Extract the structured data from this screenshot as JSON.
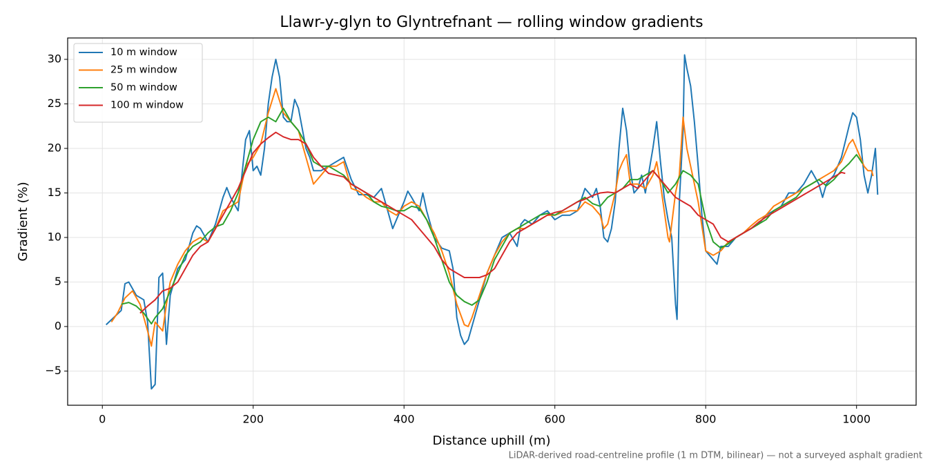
{
  "chart_data": {
    "type": "line",
    "title": "Llawr-y-glyn to Glyntrefnant — rolling window gradients",
    "x_label": "Distance uphill (m)",
    "y_label": "Gradient (%)",
    "footnote": "LiDAR-derived road-centreline profile (1 m DTM, bilinear) — not a surveyed asphalt gradient",
    "xlim": [
      -46,
      1079
    ],
    "ylim": [
      -8.84,
      32.4
    ],
    "xticks": [
      0,
      200,
      400,
      600,
      800,
      1000
    ],
    "yticks": [
      {
        "value": -5,
        "label": "−5"
      },
      0,
      5,
      10,
      15,
      20,
      25,
      30
    ],
    "grid": true,
    "legend": "upper-left",
    "series": [
      {
        "name": "10 m window",
        "color": "#1f77b4",
        "x": [
          5,
          15,
          25,
          30,
          35,
          45,
          55,
          60,
          65,
          70,
          75,
          80,
          85,
          90,
          95,
          100,
          110,
          120,
          125,
          130,
          140,
          150,
          160,
          165,
          170,
          180,
          185,
          190,
          195,
          200,
          205,
          210,
          215,
          220,
          225,
          230,
          235,
          240,
          245,
          250,
          255,
          260,
          270,
          275,
          280,
          290,
          300,
          310,
          320,
          330,
          340,
          350,
          360,
          370,
          380,
          385,
          390,
          400,
          405,
          410,
          420,
          425,
          430,
          440,
          450,
          460,
          465,
          470,
          475,
          480,
          485,
          490,
          500,
          510,
          520,
          530,
          540,
          550,
          555,
          560,
          570,
          580,
          590,
          600,
          610,
          620,
          630,
          640,
          650,
          655,
          660,
          665,
          670,
          675,
          680,
          685,
          690,
          695,
          700,
          705,
          710,
          715,
          720,
          730,
          735,
          740,
          745,
          750,
          755,
          760,
          762,
          765,
          770,
          772,
          775,
          780,
          785,
          790,
          795,
          800,
          810,
          815,
          820,
          830,
          840,
          850,
          860,
          870,
          880,
          890,
          900,
          910,
          920,
          930,
          940,
          950,
          955,
          960,
          970,
          980,
          990,
          995,
          1000,
          1005,
          1010,
          1015,
          1020,
          1025,
          1028
        ],
        "values": [
          0.2,
          1.0,
          1.8,
          4.8,
          5.0,
          3.5,
          3.0,
          0.5,
          -7.0,
          -6.5,
          5.5,
          6.0,
          -2.0,
          3.5,
          5,
          6.5,
          7.5,
          10.5,
          11.3,
          11.0,
          9.5,
          11.5,
          14.5,
          15.6,
          14.5,
          13,
          17,
          21,
          22,
          17.5,
          18,
          17,
          20,
          25,
          28,
          30,
          28,
          23.5,
          23,
          23,
          25.5,
          24.5,
          20,
          19,
          17.5,
          17.5,
          18,
          18.5,
          19,
          16.5,
          14.8,
          14.8,
          14.5,
          15.5,
          12.5,
          11,
          12,
          14,
          15.2,
          14.5,
          13,
          15,
          13,
          10,
          8.8,
          8.5,
          6.5,
          1,
          -1,
          -2,
          -1.5,
          0,
          3,
          6,
          8,
          10,
          10.5,
          9,
          11.5,
          12,
          11.5,
          12.5,
          13,
          12,
          12.5,
          12.5,
          13,
          15.5,
          14.5,
          15.5,
          13.5,
          10,
          9.5,
          11,
          14,
          20,
          24.5,
          22,
          17.5,
          15,
          15.5,
          17,
          15,
          20,
          23,
          18.5,
          14.5,
          12,
          10,
          2.5,
          0.8,
          14,
          22,
          30.5,
          29,
          27,
          23,
          18,
          12.5,
          8.5,
          7.5,
          7,
          9,
          9,
          10,
          10.5,
          11,
          11.5,
          12.5,
          13,
          13.5,
          15,
          15,
          16,
          17.5,
          16,
          14.5,
          16,
          17,
          19,
          22.5,
          24,
          23.5,
          21,
          17,
          15,
          17,
          20,
          14.8
        ]
      },
      {
        "name": "25 m window",
        "color": "#ff7f0e",
        "x": [
          12,
          20,
          30,
          40,
          50,
          60,
          65,
          70,
          75,
          80,
          85,
          90,
          100,
          110,
          120,
          130,
          140,
          150,
          160,
          170,
          180,
          190,
          200,
          210,
          220,
          230,
          240,
          250,
          260,
          270,
          280,
          290,
          300,
          310,
          320,
          330,
          340,
          350,
          360,
          370,
          380,
          390,
          400,
          410,
          420,
          430,
          440,
          450,
          460,
          470,
          480,
          485,
          490,
          500,
          510,
          520,
          530,
          540,
          550,
          560,
          570,
          580,
          590,
          600,
          610,
          620,
          630,
          640,
          650,
          660,
          665,
          670,
          680,
          685,
          690,
          695,
          700,
          710,
          720,
          730,
          735,
          740,
          745,
          750,
          752,
          760,
          765,
          770,
          775,
          780,
          790,
          800,
          810,
          820,
          830,
          840,
          850,
          860,
          870,
          880,
          890,
          900,
          910,
          920,
          930,
          940,
          950,
          960,
          970,
          980,
          990,
          995,
          1000,
          1010,
          1015,
          1020,
          1022
        ],
        "values": [
          0.5,
          1.5,
          3.2,
          4,
          2.5,
          -0.5,
          -2.2,
          0.5,
          0,
          -0.5,
          2.5,
          5,
          7,
          8.5,
          9.5,
          10,
          9.5,
          11,
          13,
          13.5,
          14,
          18,
          19,
          20.5,
          24,
          26.7,
          24,
          23,
          22,
          19,
          16,
          17,
          18,
          18,
          18.5,
          15.5,
          15.2,
          14.5,
          14,
          14,
          13,
          12.5,
          13.5,
          14,
          13.5,
          12,
          10.5,
          8.5,
          6,
          2.5,
          0.2,
          0,
          1,
          3.5,
          6,
          8,
          9.5,
          10.5,
          11,
          11,
          11.5,
          12,
          12.5,
          12.5,
          12.8,
          13,
          13,
          14,
          13.5,
          12.5,
          11,
          11.5,
          15,
          17.5,
          18.5,
          19.3,
          16,
          16,
          15.5,
          17,
          18.5,
          16,
          13,
          10,
          9.5,
          15,
          17,
          23.5,
          20,
          18,
          14,
          8.5,
          8,
          8.5,
          9.5,
          10,
          10.5,
          11.3,
          12,
          12.5,
          13.5,
          14,
          14.5,
          15,
          15.5,
          16,
          16.5,
          17,
          17.5,
          18.5,
          20.5,
          21,
          20,
          18,
          17.5,
          17.5,
          16.9
        ]
      },
      {
        "name": "50 m window",
        "color": "#2ca02c",
        "x": [
          25,
          35,
          45,
          55,
          65,
          70,
          80,
          90,
          100,
          110,
          120,
          130,
          140,
          150,
          160,
          170,
          180,
          190,
          200,
          210,
          220,
          230,
          240,
          250,
          260,
          270,
          280,
          290,
          300,
          310,
          320,
          330,
          340,
          350,
          360,
          370,
          380,
          390,
          400,
          410,
          420,
          430,
          440,
          450,
          460,
          470,
          480,
          490,
          500,
          510,
          520,
          530,
          540,
          550,
          560,
          570,
          580,
          590,
          600,
          610,
          620,
          630,
          640,
          650,
          660,
          670,
          680,
          690,
          700,
          710,
          720,
          730,
          740,
          750,
          760,
          770,
          780,
          790,
          800,
          810,
          820,
          830,
          840,
          850,
          860,
          870,
          880,
          890,
          900,
          910,
          920,
          930,
          940,
          950,
          960,
          970,
          980,
          990,
          1000,
          1008
        ],
        "values": [
          2.5,
          2.7,
          2.3,
          1.5,
          0.3,
          1,
          2,
          4,
          6,
          8,
          9,
          9.5,
          10.5,
          11.2,
          11.5,
          13,
          15,
          18,
          21,
          23,
          23.5,
          23,
          24.5,
          23,
          22,
          20.5,
          18.5,
          18,
          18,
          17.5,
          17,
          16,
          15.5,
          15,
          14,
          13.5,
          13.3,
          13,
          13,
          13.5,
          13.3,
          12,
          10,
          7.5,
          5,
          3.5,
          2.8,
          2.4,
          3,
          5,
          7.5,
          9,
          10.5,
          11,
          11.5,
          12,
          12.5,
          12.7,
          12.5,
          13,
          13.5,
          14,
          14.5,
          13.8,
          13.5,
          14.5,
          15,
          15.5,
          16.5,
          16.5,
          17,
          17.5,
          16.5,
          15,
          16,
          17.5,
          17,
          16,
          12,
          9.5,
          8.8,
          9.3,
          10,
          10.5,
          11,
          11.5,
          12,
          13,
          13.5,
          14,
          14.5,
          15.5,
          16,
          16.5,
          15.8,
          16.5,
          17.5,
          18.3,
          19.3,
          18.3
        ]
      },
      {
        "name": "100 m window",
        "color": "#d62728",
        "x": [
          50,
          60,
          70,
          80,
          90,
          100,
          110,
          120,
          130,
          140,
          150,
          160,
          170,
          180,
          190,
          200,
          210,
          220,
          230,
          240,
          250,
          260,
          270,
          280,
          290,
          300,
          310,
          320,
          330,
          340,
          350,
          360,
          370,
          380,
          390,
          400,
          410,
          420,
          430,
          440,
          450,
          460,
          470,
          480,
          490,
          500,
          510,
          520,
          530,
          540,
          550,
          560,
          570,
          580,
          590,
          600,
          610,
          620,
          630,
          640,
          650,
          660,
          670,
          680,
          690,
          700,
          710,
          720,
          730,
          740,
          750,
          760,
          770,
          780,
          790,
          800,
          810,
          820,
          830,
          840,
          850,
          860,
          870,
          880,
          890,
          900,
          910,
          920,
          930,
          940,
          950,
          960,
          970,
          980,
          985
        ],
        "values": [
          1.5,
          2.3,
          3,
          4,
          4.3,
          5,
          6.5,
          8,
          9,
          9.5,
          11,
          12.5,
          14,
          15.5,
          17.5,
          19.5,
          20.5,
          21.2,
          21.8,
          21.3,
          21,
          21,
          20.5,
          19,
          18,
          17.2,
          17,
          16.8,
          16,
          15.5,
          15,
          14.5,
          14,
          13.5,
          13,
          12.5,
          12,
          11,
          10,
          9,
          7.5,
          6.5,
          6,
          5.5,
          5.5,
          5.5,
          5.8,
          6.5,
          8,
          9.5,
          10.5,
          11,
          11.5,
          12,
          12.5,
          12.8,
          13,
          13.5,
          14,
          14.3,
          14.7,
          15,
          15.1,
          15,
          15.5,
          16,
          15.5,
          16.5,
          17.5,
          16.5,
          15.5,
          14.5,
          14,
          13.5,
          12.5,
          12,
          11.5,
          10,
          9.5,
          10,
          10.5,
          11,
          11.7,
          12.3,
          12.8,
          13.3,
          13.8,
          14.3,
          14.8,
          15.3,
          15.8,
          16.3,
          16.8,
          17.3,
          17.2
        ]
      }
    ]
  }
}
